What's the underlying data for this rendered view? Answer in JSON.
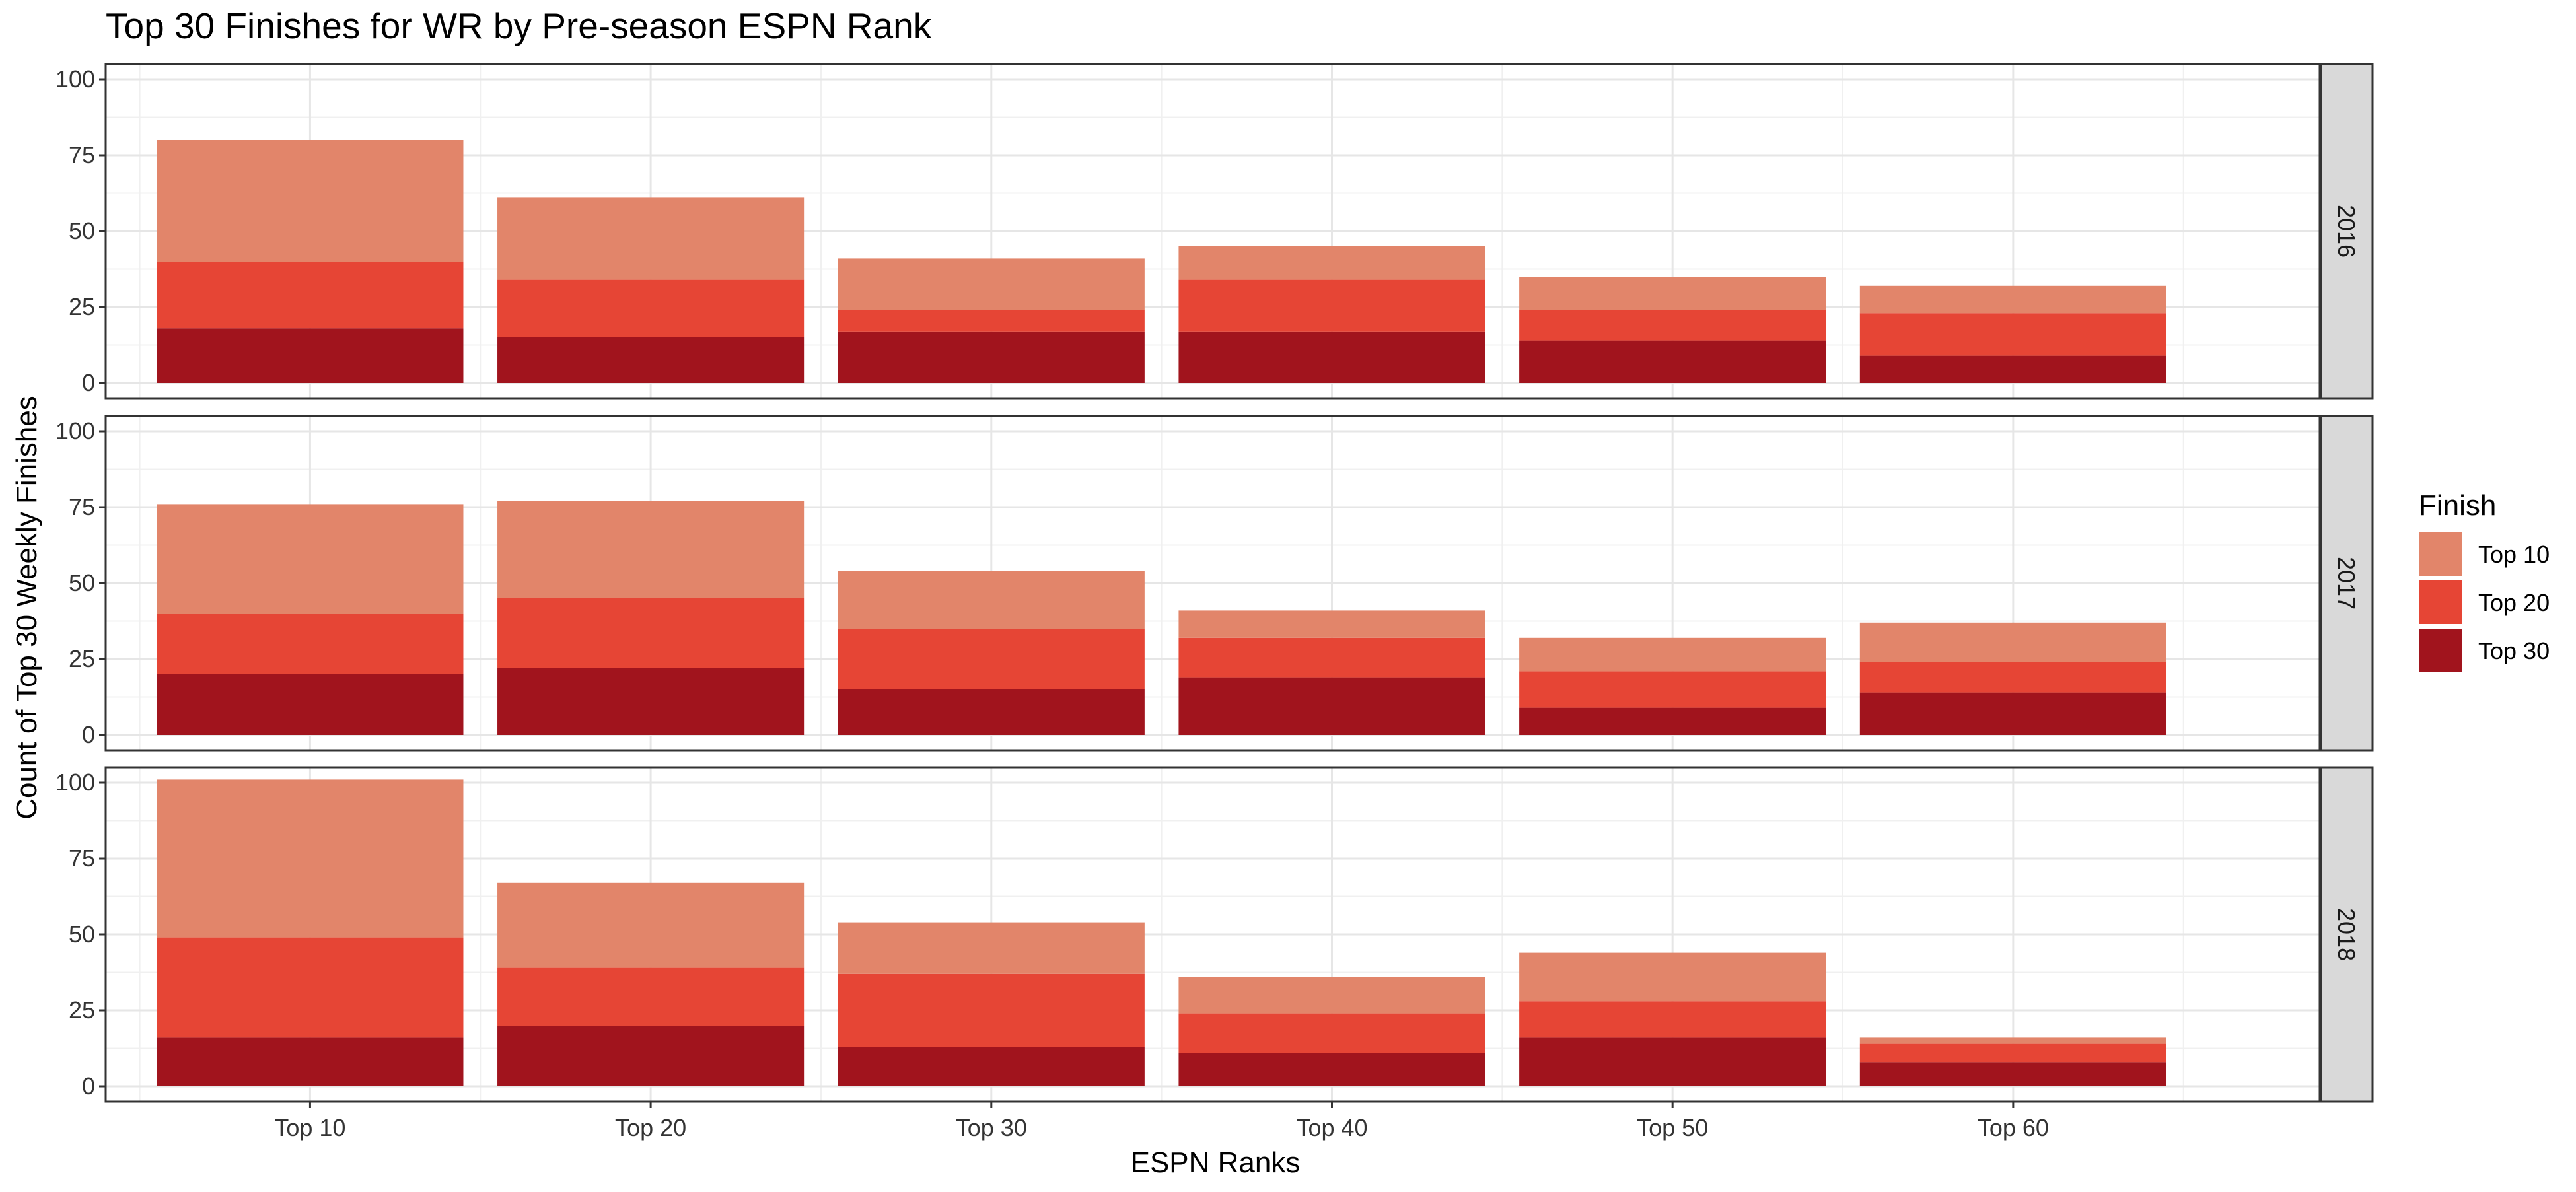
{
  "chart_data": {
    "type": "bar",
    "stacked": true,
    "title": "Top 30 Finishes for WR by Pre-season ESPN Rank",
    "xlabel": "ESPN Ranks",
    "ylabel": "Count of Top 30 Weekly Finishes",
    "categories": [
      "Top 10",
      "Top 20",
      "Top 30",
      "Top 40",
      "Top 50",
      "Top 60"
    ],
    "ylim": [
      0,
      100
    ],
    "yticks": [
      0,
      25,
      50,
      75,
      100
    ],
    "grid": true,
    "legend": {
      "title": "Finish",
      "position": "right",
      "entries": [
        "Top 10",
        "Top 20",
        "Top 30"
      ]
    },
    "colors": {
      "Top 10": "#e2856a",
      "Top 20": "#e64535",
      "Top 30": "#a1141d"
    },
    "facets": [
      {
        "label": "2016",
        "series": [
          {
            "name": "Top 30",
            "values": [
              18,
              15,
              17,
              17,
              14,
              9
            ]
          },
          {
            "name": "Top 20",
            "values": [
              22,
              19,
              7,
              17,
              10,
              14
            ]
          },
          {
            "name": "Top 10",
            "values": [
              40,
              27,
              17,
              11,
              11,
              9
            ]
          }
        ]
      },
      {
        "label": "2017",
        "series": [
          {
            "name": "Top 30",
            "values": [
              20,
              22,
              15,
              19,
              9,
              14
            ]
          },
          {
            "name": "Top 20",
            "values": [
              20,
              23,
              20,
              13,
              12,
              10
            ]
          },
          {
            "name": "Top 10",
            "values": [
              36,
              32,
              19,
              9,
              11,
              13
            ]
          }
        ]
      },
      {
        "label": "2018",
        "series": [
          {
            "name": "Top 30",
            "values": [
              16,
              20,
              13,
              11,
              16,
              8
            ]
          },
          {
            "name": "Top 20",
            "values": [
              33,
              19,
              24,
              13,
              12,
              6
            ]
          },
          {
            "name": "Top 10",
            "values": [
              52,
              28,
              17,
              12,
              16,
              2
            ]
          }
        ]
      }
    ]
  }
}
